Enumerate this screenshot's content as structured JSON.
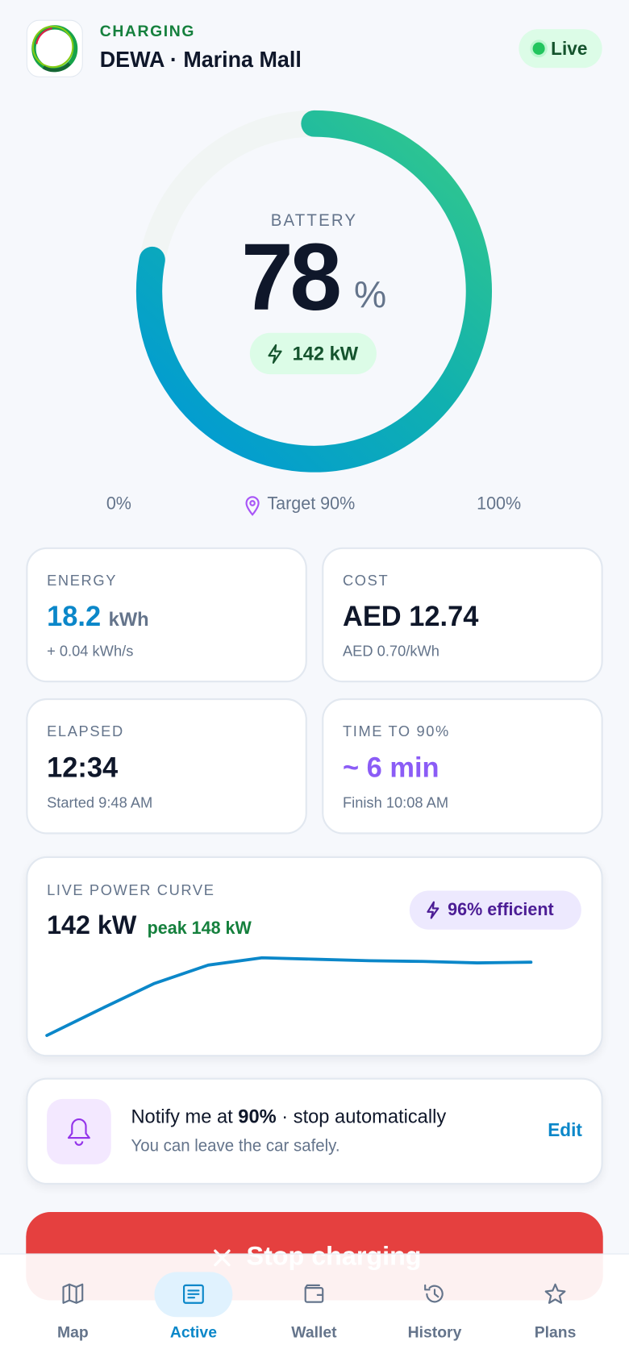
{
  "header": {
    "status": "CHARGING",
    "station": "DEWA · Marina Mall",
    "live": "Live"
  },
  "battery": {
    "label": "BATTERY",
    "percent": 78,
    "unit": "%",
    "power": "142 kW"
  },
  "scale": {
    "min": "0%",
    "target": "Target 90%",
    "max": "100%"
  },
  "cards": [
    {
      "label": "ENERGY",
      "value": "18.2",
      "unit": "kWh",
      "sub": "+ 0.04 kWh/s"
    },
    {
      "label": "COST",
      "value": "AED 12.74",
      "sub": "AED 0.70/kWh"
    },
    {
      "label": "ELAPSED",
      "value": "12:34",
      "sub": "Started 9:48 AM"
    },
    {
      "label": "TIME TO 90%",
      "value": "~ 6 min",
      "sub": "Finish 10:08 AM"
    }
  ],
  "power_curve": {
    "label": "LIVE POWER CURVE",
    "current": "142 kW",
    "peak": "peak 148 kW",
    "efficiency": "96% efficient",
    "values": [
      42,
      78,
      113,
      138,
      148,
      146,
      144,
      143,
      141,
      142
    ]
  },
  "notify": {
    "prefix": "Notify me at ",
    "percent": "90%",
    "suffix": " · stop automatically",
    "sub": "You can leave the car safely.",
    "action": "Edit"
  },
  "stop": "Stop charging",
  "nav": [
    "Map",
    "Active",
    "Wallet",
    "History",
    "Plans"
  ],
  "active_tab": "Active"
}
